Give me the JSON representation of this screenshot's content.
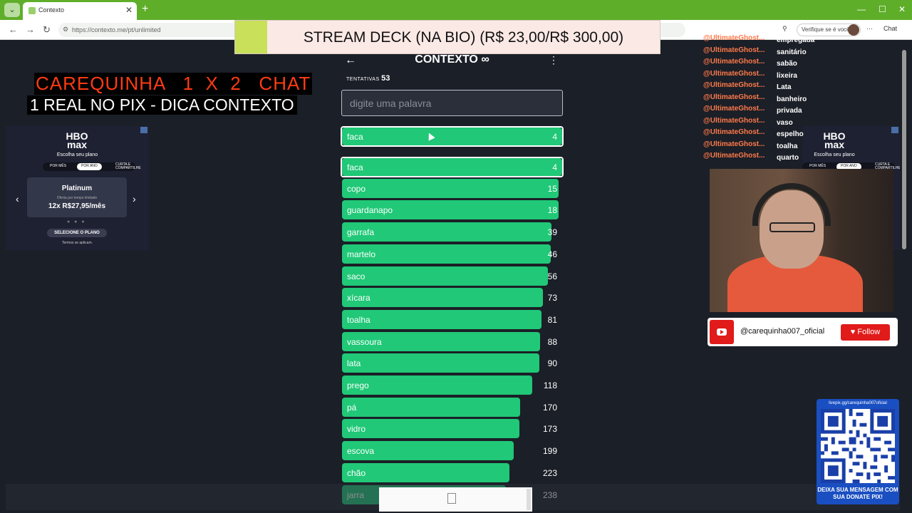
{
  "browser": {
    "tab_title": "Contexto",
    "url": "https://contexto.me/pt/unlimited",
    "verify_label": "Verifique se é você",
    "chat_label": "Chat"
  },
  "banner": {
    "text": "STREAM DECK (NA BIO) (R$ 23,00/R$ 300,00)"
  },
  "overlay": {
    "line1": "CAREQUINHA   1  X  2   CHAT",
    "line2": "1 REAL NO PIX - DICA CONTEXTO"
  },
  "ad": {
    "brand": "HBO max",
    "choose": "Escolha seu plano",
    "plan_tabs": [
      "POR MÊS",
      "POR ANO",
      "CURTA E COMPARTILHE"
    ],
    "plan_name": "Platinum",
    "offer": "Oferta por tempo limitado",
    "price": "12x R$27,95/mês",
    "cta": "SELECIONE O PLANO",
    "terms": "Termos se aplicam."
  },
  "game": {
    "title": "CONTEXTO ∞",
    "attempts_label": "TENTATIVAS",
    "attempts": "53",
    "input_placeholder": "digite uma palavra",
    "last_guess": {
      "word": "faca",
      "rank": 4
    },
    "guesses": [
      {
        "word": "faca",
        "rank": 4,
        "fill": 1.0
      },
      {
        "word": "copo",
        "rank": 15,
        "fill": 0.983
      },
      {
        "word": "guardanapo",
        "rank": 18,
        "fill": 0.983
      },
      {
        "word": "garrafa",
        "rank": 39,
        "fill": 0.953
      },
      {
        "word": "martelo",
        "rank": 46,
        "fill": 0.947
      },
      {
        "word": "saco",
        "rank": 56,
        "fill": 0.934
      },
      {
        "word": "xícara",
        "rank": 73,
        "fill": 0.913
      },
      {
        "word": "toalha",
        "rank": 81,
        "fill": 0.906
      },
      {
        "word": "vassoura",
        "rank": 88,
        "fill": 0.9
      },
      {
        "word": "lata",
        "rank": 90,
        "fill": 0.896
      },
      {
        "word": "prego",
        "rank": 118,
        "fill": 0.864
      },
      {
        "word": "pá",
        "rank": 170,
        "fill": 0.809
      },
      {
        "word": "vidro",
        "rank": 173,
        "fill": 0.806
      },
      {
        "word": "escova",
        "rank": 199,
        "fill": 0.78
      },
      {
        "word": "chão",
        "rank": 223,
        "fill": 0.76
      },
      {
        "word": "jarra",
        "rank": 238,
        "fill": 0.745
      }
    ]
  },
  "chat": [
    {
      "user": "@UltimateGhost...",
      "msg": "empregada"
    },
    {
      "user": "@UltimateGhost...",
      "msg": "sanitário"
    },
    {
      "user": "@UltimateGhost...",
      "msg": "sabão"
    },
    {
      "user": "@UltimateGhost...",
      "msg": "lixeira"
    },
    {
      "user": "@UltimateGhost...",
      "msg": "Lata"
    },
    {
      "user": "@UltimateGhost...",
      "msg": "banheiro"
    },
    {
      "user": "@UltimateGhost...",
      "msg": "privada"
    },
    {
      "user": "@UltimateGhost...",
      "msg": "vaso"
    },
    {
      "user": "@UltimateGhost...",
      "msg": "espelho"
    },
    {
      "user": "@UltimateGhost...",
      "msg": "toalha"
    },
    {
      "user": "@UltimateGhost...",
      "msg": "quarto"
    }
  ],
  "youtube": {
    "handle": "@carequinha007_oficial",
    "follow_label": "Follow"
  },
  "qr": {
    "top_text": "livepix.gg/carequinha007oficial",
    "bottom_text": "DEIXA SUA MENSAGEM COM SUA DONATE PIX!"
  },
  "colors": {
    "accent": "#20c877",
    "bg": "#1b1f27",
    "chrome": "#5fae2a"
  }
}
